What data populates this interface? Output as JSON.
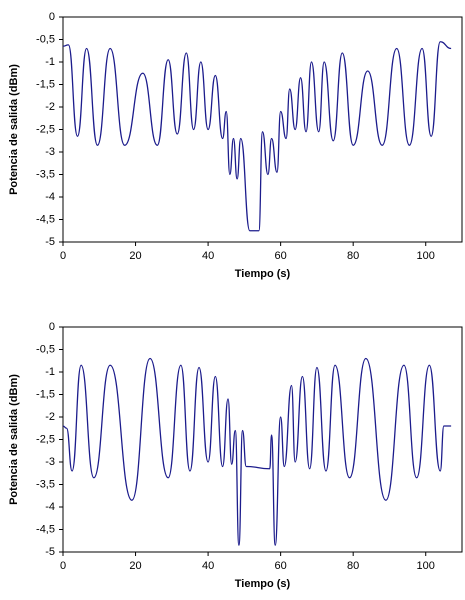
{
  "chart_data": [
    {
      "type": "line",
      "xlabel": "Tiempo (s)",
      "ylabel": "Potencia de salida (dBm)",
      "xlim": [
        0,
        110
      ],
      "xticks": [
        0,
        20,
        40,
        60,
        80,
        100
      ],
      "ylim": [
        -5,
        0
      ],
      "yticks": [
        0,
        {
          "value": -0.5,
          "label": "-0,5"
        },
        -1,
        {
          "value": -1.5,
          "label": "-1,5"
        },
        -2,
        {
          "value": -2.5,
          "label": "-2,5"
        },
        -3,
        {
          "value": -3.5,
          "label": "-3,5"
        },
        -4,
        {
          "value": -4.5,
          "label": "-4,5"
        },
        -5
      ],
      "series": [
        {
          "color": "#1c1c8c",
          "x": [
            0,
            1.5,
            4,
            6.5,
            9.5,
            13,
            17,
            22,
            26,
            29,
            31.5,
            34,
            36,
            38,
            40,
            42,
            44,
            45,
            46,
            47,
            48,
            49,
            51.5,
            54,
            55,
            56.5,
            57.5,
            59,
            60,
            61.5,
            62.5,
            64,
            65.5,
            67,
            68.5,
            70.5,
            72,
            74.5,
            77,
            80,
            84,
            88,
            92,
            95.5,
            99,
            101.5,
            104,
            107
          ],
          "values": [
            -0.65,
            -0.62,
            -2.65,
            -0.7,
            -2.85,
            -0.7,
            -2.85,
            -1.25,
            -2.85,
            -0.95,
            -2.6,
            -0.8,
            -2.5,
            -1.0,
            -2.5,
            -1.3,
            -2.7,
            -2.1,
            -3.5,
            -2.7,
            -3.6,
            -2.7,
            -4.75,
            -4.75,
            -2.55,
            -3.5,
            -2.7,
            -3.45,
            -2.1,
            -2.7,
            -1.6,
            -2.5,
            -1.35,
            -2.55,
            -1.0,
            -2.55,
            -1.0,
            -2.75,
            -0.8,
            -2.85,
            -1.2,
            -2.85,
            -0.7,
            -2.85,
            -0.7,
            -2.65,
            -0.55,
            -0.7
          ]
        }
      ]
    },
    {
      "type": "line",
      "xlabel": "Tiempo (s)",
      "ylabel": "Potencia de salida (dBm)",
      "xlim": [
        0,
        110
      ],
      "xticks": [
        0,
        20,
        40,
        60,
        80,
        100
      ],
      "ylim": [
        -5,
        0
      ],
      "yticks": [
        0,
        {
          "value": -0.5,
          "label": "-0,5"
        },
        -1,
        {
          "value": -1.5,
          "label": "-1,5"
        },
        -2,
        {
          "value": -2.5,
          "label": "-2,5"
        },
        -3,
        {
          "value": -3.5,
          "label": "-3,5"
        },
        -4,
        {
          "value": -4.5,
          "label": "-4,5"
        },
        -5
      ],
      "series": [
        {
          "color": "#1c1c8c",
          "x": [
            0,
            1,
            2.5,
            5,
            8.5,
            13,
            19,
            24,
            29,
            32.5,
            35,
            37.5,
            40,
            42,
            44,
            45.5,
            46.5,
            47.5,
            48.5,
            49.5,
            50.5,
            57,
            57.5,
            58.5,
            60,
            61,
            63,
            64,
            66,
            68,
            70,
            72.5,
            75,
            79,
            83.5,
            89,
            94,
            97.5,
            101,
            104,
            105,
            107
          ],
          "values": [
            -2.2,
            -2.25,
            -3.2,
            -0.85,
            -3.35,
            -0.85,
            -3.85,
            -0.7,
            -3.35,
            -0.85,
            -3.2,
            -0.9,
            -3.0,
            -1.1,
            -3.1,
            -1.6,
            -3.05,
            -2.3,
            -4.85,
            -2.3,
            -3.1,
            -3.15,
            -2.4,
            -4.85,
            -2.0,
            -3.1,
            -1.3,
            -3.0,
            -1.1,
            -3.15,
            -0.9,
            -3.2,
            -0.85,
            -3.35,
            -0.7,
            -3.85,
            -0.85,
            -3.35,
            -0.85,
            -3.2,
            -2.2,
            -2.2
          ]
        }
      ]
    }
  ]
}
